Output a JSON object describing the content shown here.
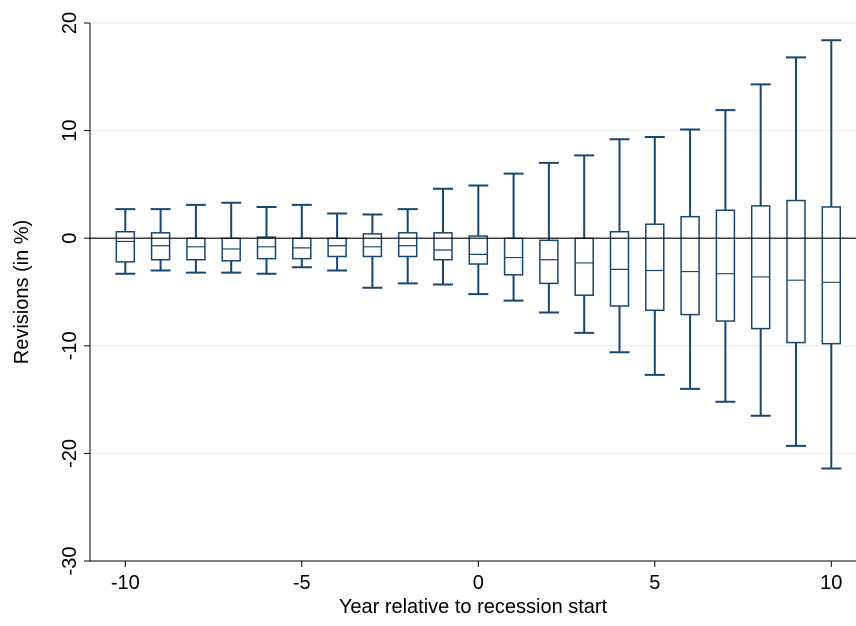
{
  "chart_data": {
    "type": "box",
    "xlabel": "Year relative to recession start",
    "ylabel": "Revisions (in %)",
    "x": [
      -10,
      -9,
      -8,
      -7,
      -6,
      -5,
      -4,
      -3,
      -2,
      -1,
      0,
      1,
      2,
      3,
      4,
      5,
      6,
      7,
      8,
      9,
      10
    ],
    "color": "#1a476f",
    "low": [
      -3.3,
      -3.0,
      -3.2,
      -3.2,
      -3.3,
      -2.7,
      -3.0,
      -4.6,
      -4.2,
      -4.3,
      -5.2,
      -5.8,
      -6.9,
      -8.8,
      -10.6,
      -12.7,
      -14.0,
      -15.2,
      -16.5,
      -19.3,
      -21.4
    ],
    "q1": [
      -2.2,
      -2.0,
      -2.0,
      -2.1,
      -1.9,
      -1.9,
      -1.7,
      -1.7,
      -1.7,
      -2.0,
      -2.4,
      -3.4,
      -4.2,
      -5.3,
      -6.3,
      -6.7,
      -7.1,
      -7.7,
      -8.4,
      -9.7,
      -9.8
    ],
    "median": [
      -0.3,
      -0.7,
      -0.8,
      -1.0,
      -0.8,
      -0.9,
      -0.7,
      -0.8,
      -0.7,
      -1.1,
      -1.5,
      -1.8,
      -2.0,
      -2.3,
      -2.9,
      -3.0,
      -3.1,
      -3.3,
      -3.6,
      -3.9,
      -4.1
    ],
    "q3": [
      0.6,
      0.5,
      0,
      0,
      0.1,
      0,
      0,
      0.4,
      0.5,
      0.5,
      0.2,
      0,
      -0.2,
      0,
      0.6,
      1.3,
      2.0,
      2.6,
      3.0,
      3.5,
      2.9
    ],
    "high": [
      2.7,
      2.7,
      3.1,
      3.3,
      2.9,
      3.1,
      2.3,
      2.2,
      2.7,
      4.6,
      4.9,
      6.0,
      7.0,
      7.7,
      9.2,
      9.4,
      10.1,
      11.9,
      14.3,
      16.8,
      18.4
    ],
    "xlim": [
      -11,
      10.7
    ],
    "xticks": [
      -10,
      -5,
      0,
      5,
      10
    ],
    "ylim": [
      -30,
      20
    ],
    "yticks": [
      -30,
      -20,
      -10,
      0,
      10,
      20
    ],
    "grid": true,
    "reference_line": 0
  }
}
